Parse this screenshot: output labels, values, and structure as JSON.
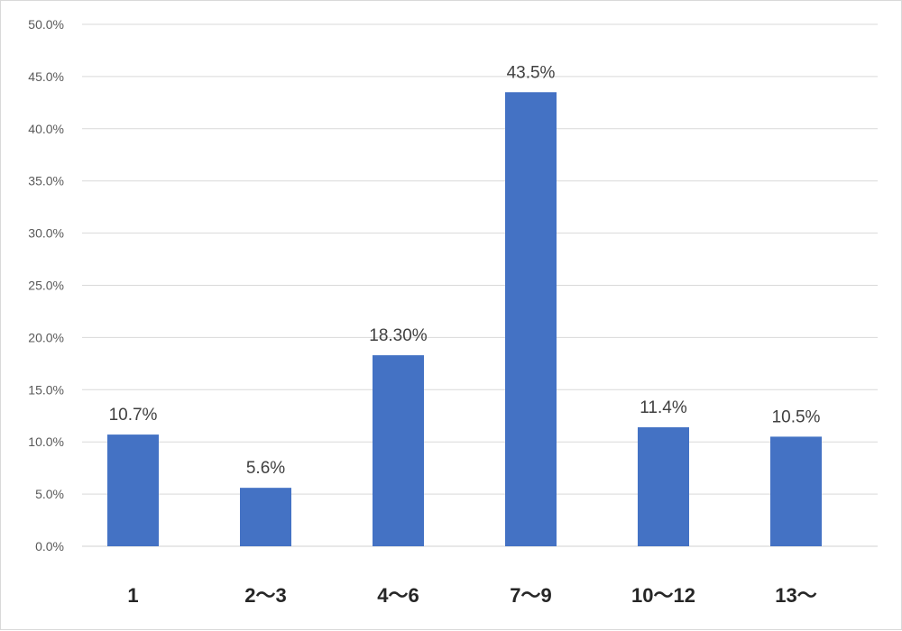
{
  "chart_data": {
    "type": "bar",
    "categories": [
      "1",
      "2～3",
      "4～6",
      "7～9",
      "10～12",
      "13～"
    ],
    "values": [
      10.7,
      5.6,
      18.3,
      43.5,
      11.4,
      10.5
    ],
    "data_labels": [
      "10.7%",
      "5.6%",
      "18.30%",
      "43.5%",
      "11.4%",
      "10.5%"
    ],
    "yticks": [
      "0.0%",
      "5.0%",
      "10.0%",
      "15.0%",
      "20.0%",
      "25.0%",
      "30.0%",
      "35.0%",
      "40.0%",
      "45.0%",
      "50.0%"
    ],
    "ylim": [
      0,
      50
    ],
    "grid": true,
    "legend": "none",
    "bar_color": "#4472c4"
  }
}
